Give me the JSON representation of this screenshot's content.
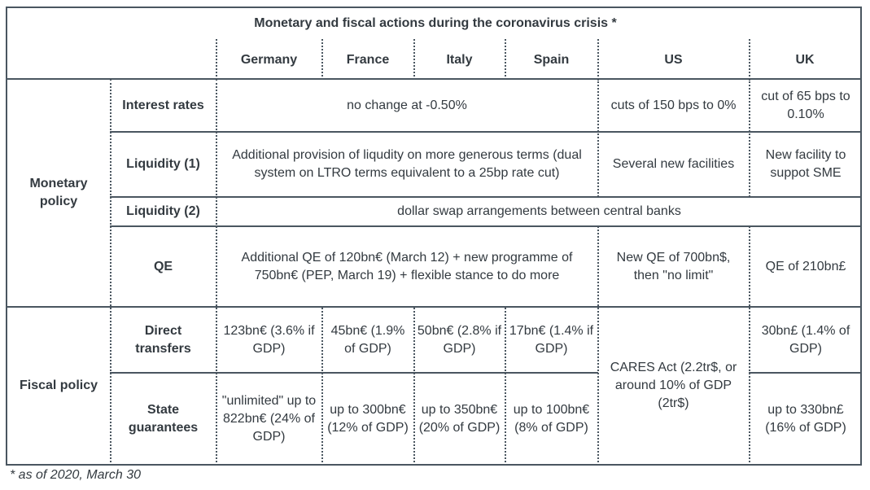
{
  "title": "Monetary and fiscal actions during the coronavirus crisis *",
  "countries": [
    "Germany",
    "France",
    "Italy",
    "Spain",
    "US",
    "UK"
  ],
  "groups": {
    "monetary": "Monetary policy",
    "fiscal": "Fiscal policy"
  },
  "rows": {
    "interest": {
      "label": "Interest rates",
      "euro": "no change at -0.50%",
      "us": "cuts of 150 bps to 0%",
      "uk": "cut of 65 bps to 0.10%"
    },
    "liq1": {
      "label": "Liquidity (1)",
      "euro": "Additional provision of liqudity on more generous terms (dual system on LTRO terms equivalent to a 25bp rate cut)",
      "us": "Several new facilities",
      "uk": "New facility to suppot SME"
    },
    "liq2": {
      "label": "Liquidity (2)",
      "all": "dollar swap arrangements between central banks"
    },
    "qe": {
      "label": "QE",
      "euro": "Additional QE of 120bn€ (March 12) + new programme of 750bn€ (PEP, March 19) + flexible stance to do more",
      "us": "New QE of 700bn$, then \"no limit\"",
      "uk": "QE of 210bn£"
    },
    "transfers": {
      "label": "Direct transfers",
      "germany": "123bn€ (3.6% if GDP)",
      "france": "45bn€ (1.9% of GDP)",
      "italy": "50bn€ (2.8% if GDP)",
      "spain": "17bn€ (1.4% if GDP)",
      "uk": "30bn£ (1.4% of GDP)"
    },
    "us_fiscal": "CARES Act (2.2tr$, or around 10% of GDP (2tr$)",
    "guarantees": {
      "label": "State guarantees",
      "germany": "\"unlimited\" up to 822bn€ (24% of GDP)",
      "france": "up to 300bn€ (12% of GDP)",
      "italy": "up to 350bn€ (20% of GDP)",
      "spain": "up to 100bn€ (8% of GDP)",
      "uk": "up to 330bn£ (16% of GDP)"
    }
  },
  "footnote": "* as of 2020, March 30"
}
